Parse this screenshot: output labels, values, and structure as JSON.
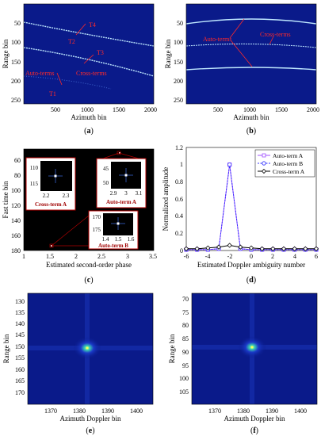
{
  "colors": {
    "map_background": "#0a1a8a",
    "curve": "#bfe8ff",
    "annotation": "#ff2a2a",
    "inset_border": "#b00000",
    "auto_a": "#a050ff",
    "auto_b": "#3030ff",
    "cross_a": "#000000"
  },
  "icons": [
    "square-marker",
    "circle-marker",
    "diamond-marker"
  ],
  "chart_data": [
    {
      "panel": "(a)",
      "type": "heatmap",
      "xlabel": "Azimuth bin",
      "ylabel": "Range bin",
      "xticks": [
        "500",
        "1000",
        "1500",
        "2000"
      ],
      "yticks": [
        "50",
        "100",
        "150",
        "200",
        "250"
      ],
      "xlim": [
        1,
        2048
      ],
      "ylim": [
        256,
        1
      ],
      "annotations": [
        "T4",
        "T2",
        "T3",
        "Auto-terms",
        "Cross-terms",
        "T1"
      ]
    },
    {
      "panel": "(b)",
      "type": "heatmap",
      "xlabel": "Azimuth bin",
      "ylabel": "Range bin",
      "xticks": [
        "500",
        "1000",
        "1500",
        "2000"
      ],
      "yticks": [
        "50",
        "100",
        "150",
        "200",
        "250"
      ],
      "xlim": [
        1,
        2048
      ],
      "ylim": [
        256,
        1
      ],
      "annotations": [
        "Auto-terms",
        "Cross-terms"
      ]
    },
    {
      "panel": "(c)",
      "type": "heatmap",
      "xlabel": "Estimated second-order phase",
      "ylabel": "Fast time bin",
      "xticks": [
        "1",
        "1.5",
        "2",
        "2.5",
        "3",
        "3.5"
      ],
      "yticks": [
        "60",
        "80",
        "100",
        "120",
        "140",
        "160",
        "180"
      ],
      "xlim": [
        1,
        3.5
      ],
      "ylim": [
        180,
        50
      ],
      "insets": [
        {
          "label": "Cross-term A",
          "xticks": [
            "2.2",
            "2.3"
          ],
          "yticks": [
            "110",
            "115"
          ]
        },
        {
          "label": "Auto-term A",
          "xticks": [
            "2.9",
            "3",
            "3.1"
          ],
          "yticks": [
            "45",
            "50"
          ]
        },
        {
          "label": "Auto-term B",
          "xticks": [
            "1.4",
            "1.5",
            "1.6"
          ],
          "yticks": [
            "170",
            "175"
          ]
        }
      ]
    },
    {
      "panel": "(d)",
      "type": "line",
      "xlabel": "Estimated Doppler ambiguity number",
      "ylabel": "Normalized amplitude",
      "xticks": [
        "-6",
        "-4",
        "-2",
        "0",
        "2",
        "4",
        "6"
      ],
      "yticks": [
        "0",
        "0.2",
        "0.4",
        "0.6",
        "0.8",
        "1",
        "1.2"
      ],
      "xlim": [
        -6,
        6
      ],
      "ylim": [
        0,
        1.2
      ],
      "x": [
        -6,
        -5,
        -4,
        -3,
        -2,
        -1,
        0,
        1,
        2,
        3,
        4,
        5,
        6
      ],
      "series": [
        {
          "name": "Auto-term A",
          "marker": "square",
          "values": [
            0.01,
            0.01,
            0.01,
            0.02,
            1.0,
            0.02,
            0.01,
            0.01,
            0.01,
            0.01,
            0.01,
            0.01,
            0.01
          ]
        },
        {
          "name": "Auto-term B",
          "marker": "circle",
          "values": [
            0.01,
            0.01,
            0.01,
            0.02,
            1.0,
            0.02,
            0.01,
            0.01,
            0.01,
            0.01,
            0.01,
            0.01,
            0.01
          ]
        },
        {
          "name": "Cross-term A",
          "marker": "diamond",
          "values": [
            0.02,
            0.02,
            0.03,
            0.04,
            0.06,
            0.04,
            0.03,
            0.02,
            0.02,
            0.02,
            0.02,
            0.02,
            0.02
          ]
        }
      ],
      "legend": "top-right"
    },
    {
      "panel": "(e)",
      "type": "heatmap",
      "xlabel": "Azimuth Doppler bin",
      "ylabel": "Range bin",
      "xticks": [
        "1370",
        "1380",
        "1390",
        "1400"
      ],
      "yticks": [
        "130",
        "135",
        "140",
        "145",
        "150",
        "155",
        "160",
        "165",
        "170"
      ],
      "xlim": [
        1362,
        1406
      ],
      "ylim": [
        174,
        126
      ],
      "peak": {
        "x": 1384,
        "y": 152
      }
    },
    {
      "panel": "(f)",
      "type": "heatmap",
      "xlabel": "Azimuth Doppler bin",
      "ylabel": "Range bin",
      "xticks": [
        "1370",
        "1380",
        "1390",
        "1400"
      ],
      "yticks": [
        "70",
        "75",
        "80",
        "85",
        "90",
        "95",
        "100",
        "105"
      ],
      "xlim": [
        1362,
        1406
      ],
      "ylim": [
        109,
        67
      ],
      "peak": {
        "x": 1384,
        "y": 88
      }
    }
  ]
}
